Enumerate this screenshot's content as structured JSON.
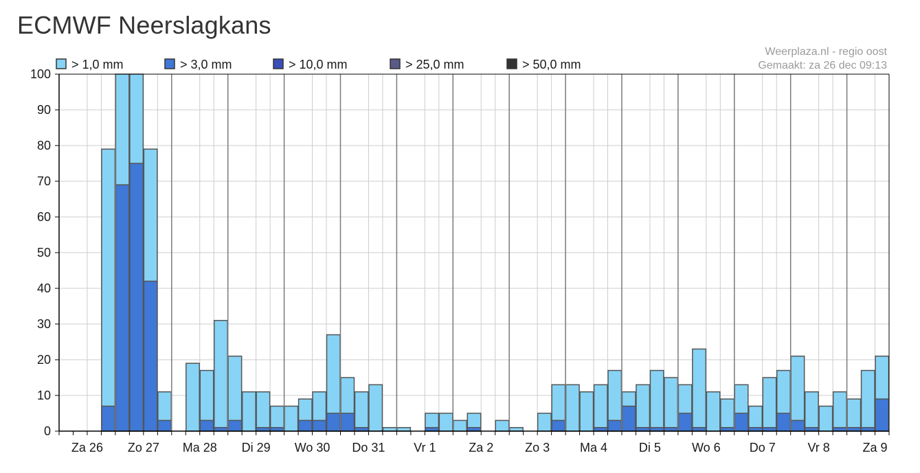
{
  "page": {
    "title": "ECMWF Neerslagkans"
  },
  "credits": {
    "line1": "Weerplaza.nl - regio oost",
    "line2": "Gemaakt: za 26 dec 09:13"
  },
  "colors": {
    "gt1": "#87d3f5",
    "gt3": "#3f78d6",
    "gt10": "#3a4db8",
    "gt25": "#5a5a88",
    "gt50": "#333333",
    "bar_edge": "#555555",
    "day_divider": "#7a7a7a",
    "gridline": "#cccccc",
    "axis": "#000000"
  },
  "chart_data": {
    "type": "bar",
    "stacked": "overlay",
    "ylim": [
      0,
      100
    ],
    "yticks": [
      0,
      10,
      20,
      30,
      40,
      50,
      60,
      70,
      80,
      90,
      100
    ],
    "grid": true,
    "legend_position": "top-left",
    "days": [
      "Za 26",
      "Zo 27",
      "Ma 28",
      "Di 29",
      "Wo 30",
      "Do 31",
      "Vr 1",
      "Za 2",
      "Zo 3",
      "Ma 4",
      "Di 5",
      "Wo 6",
      "Do 7",
      "Vr 8",
      "Za 9"
    ],
    "periods_per_day": 4,
    "series": [
      {
        "name": "> 1,0 mm",
        "values": [
          0,
          0,
          0,
          79,
          100,
          100,
          79,
          11,
          0,
          19,
          17,
          31,
          21,
          11,
          11,
          7,
          7,
          9,
          11,
          27,
          15,
          11,
          13,
          1,
          1,
          0,
          5,
          5,
          3,
          5,
          0,
          3,
          1,
          0,
          5,
          13,
          13,
          11,
          13,
          17,
          11,
          13,
          17,
          15,
          13,
          23,
          11,
          9,
          13,
          7,
          15,
          17,
          21,
          11,
          7,
          11,
          9,
          17,
          21
        ]
      },
      {
        "name": "> 3,0 mm",
        "values": [
          0,
          0,
          0,
          7,
          69,
          75,
          42,
          3,
          0,
          0,
          3,
          1,
          3,
          0,
          1,
          1,
          0,
          3,
          3,
          5,
          5,
          1,
          0,
          0,
          0,
          0,
          1,
          0,
          0,
          1,
          0,
          0,
          0,
          0,
          0,
          3,
          0,
          0,
          1,
          3,
          7,
          1,
          1,
          1,
          5,
          1,
          0,
          1,
          5,
          1,
          1,
          5,
          3,
          1,
          0,
          1,
          1,
          1,
          9
        ]
      },
      {
        "name": "> 10,0 mm",
        "values": []
      },
      {
        "name": "> 25,0 mm",
        "values": []
      },
      {
        "name": "> 50,0 mm",
        "values": []
      }
    ]
  }
}
